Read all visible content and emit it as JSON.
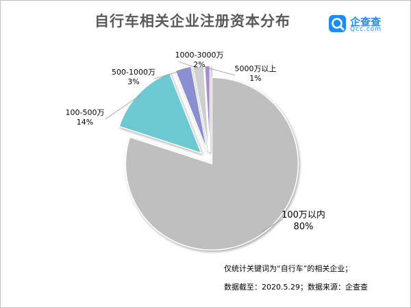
{
  "title": "自行车相关企业注册资本分布",
  "logo": {
    "name": "企查查",
    "sub": "Qcc.com"
  },
  "chart_data": {
    "type": "pie",
    "title": "自行车相关企业注册资本分布",
    "slices": [
      {
        "label": "100万以内",
        "percent_text": "80%",
        "value": 80,
        "color": "#bfbfbf"
      },
      {
        "label": "100-500万",
        "percent_text": "14%",
        "value": 14,
        "color": "#6cc9d1"
      },
      {
        "label": "500-1000万",
        "percent_text": "3%",
        "value": 3,
        "color": "#8a8fd2"
      },
      {
        "label": "1000-3000万",
        "percent_text": "2%",
        "value": 2,
        "color": "#cfcfcf"
      },
      {
        "label": "5000万以上",
        "percent_text": "1%",
        "value": 1,
        "color": "#a98bd6"
      }
    ]
  },
  "notes": {
    "line1": "仅统计关键词为“自行车”的相关企业；",
    "line2": "数据截至：2020.5.29；数据来源：企查查"
  }
}
